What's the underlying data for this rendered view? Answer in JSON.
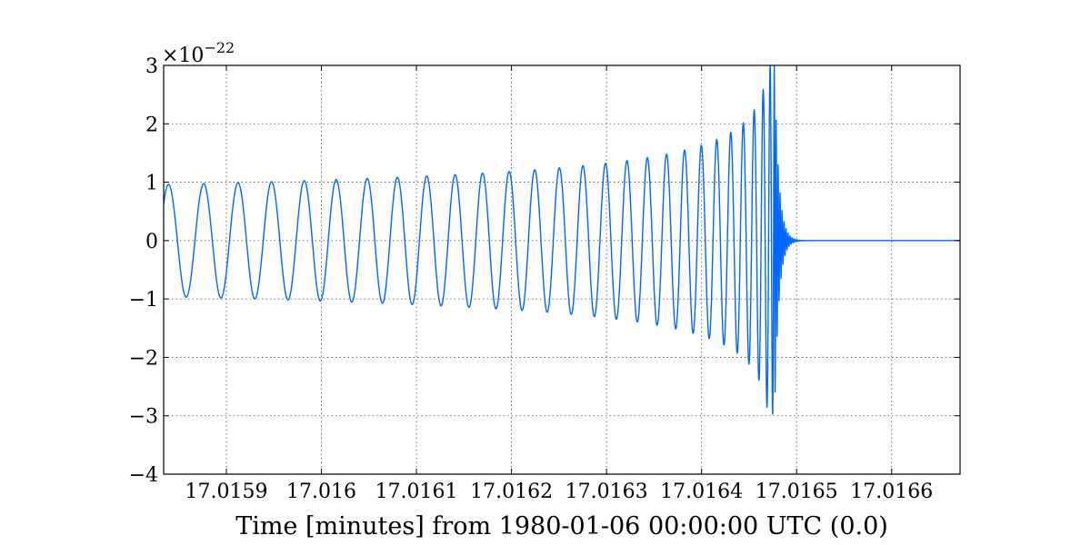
{
  "chart_data": {
    "type": "line",
    "xlabel": "Time [minutes] from 1980-01-06 00:00:00 UTC (0.0)",
    "ylabel": "",
    "y_exponent_label": "×10",
    "y_exponent_power": "−22",
    "xlim": [
      17.015834,
      17.016672
    ],
    "ylim": [
      -4,
      3
    ],
    "x_ticks": [
      17.0159,
      17.016,
      17.0161,
      17.0162,
      17.0163,
      17.0164,
      17.0165,
      17.0166
    ],
    "x_tick_labels": [
      "17.0159",
      "17.016",
      "17.0161",
      "17.0162",
      "17.0163",
      "17.0164",
      "17.0165",
      "17.0166"
    ],
    "y_ticks": [
      -4,
      -3,
      -2,
      -1,
      0,
      1,
      2,
      3
    ],
    "y_tick_labels": [
      "−4",
      "−3",
      "−2",
      "−1",
      "0",
      "1",
      "2",
      "3"
    ],
    "grid": true,
    "series": [
      {
        "color": "#0066ff",
        "waveform": "chirp",
        "merger_time": 17.016477,
        "initial_amplitude": 0.96,
        "peak_amplitude": 3.0,
        "min_value": -3.5,
        "initial_period": 3.75e-05,
        "ringdown_end": 17.016495
      }
    ]
  },
  "colors": {
    "series": "#0066ff",
    "axes": "#000000",
    "background": "#ffffff"
  }
}
